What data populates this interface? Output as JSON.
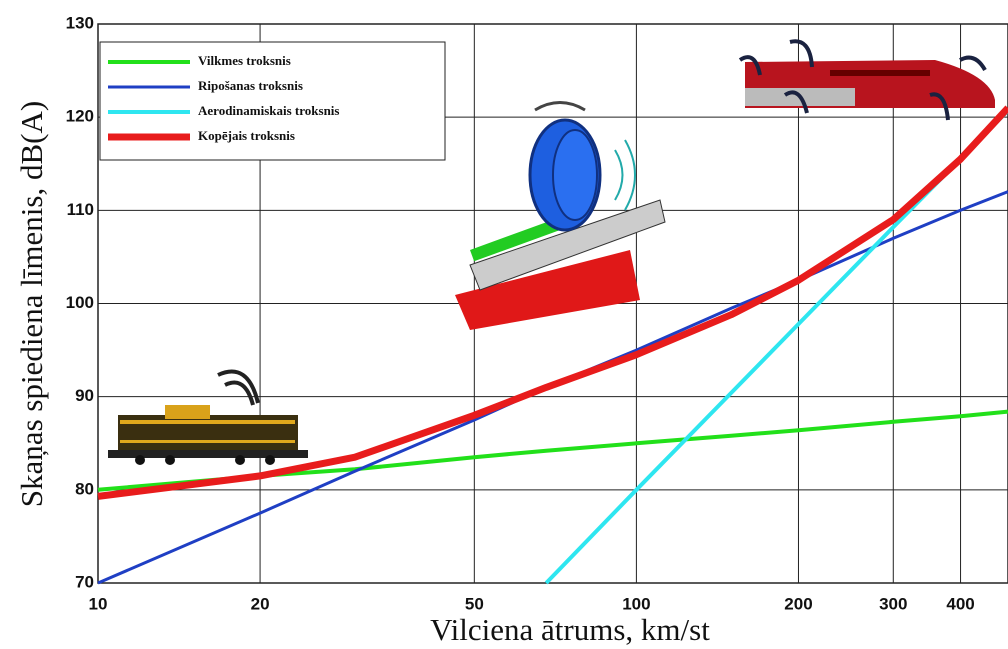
{
  "chart_data": {
    "type": "line",
    "x_label": "Vilciena ātrums, km/st",
    "y_label": "Skaņas spiediena līmenis, dB(A)",
    "x": [
      10,
      20,
      30,
      50,
      68,
      100,
      150,
      200,
      300,
      400,
      490
    ],
    "series": [
      {
        "name": "Vilkmes troksnis",
        "color": "#22e01a",
        "values": [
          80,
          81.5,
          82.2,
          83.5,
          84.2,
          85,
          85.8,
          86.4,
          87.3,
          87.9,
          88.4
        ]
      },
      {
        "name": "Ripošanas troksnis",
        "color": "#1f3fc4",
        "values": [
          70,
          77.5,
          82,
          87.5,
          91,
          95,
          99.5,
          102.5,
          107,
          110,
          112
        ]
      },
      {
        "name": "Aerodinamiskais troksnis",
        "color": "#2ee6f0",
        "values": [
          null,
          null,
          null,
          null,
          70,
          80,
          90.4,
          97.8,
          108.2,
          115.5,
          120.7
        ]
      },
      {
        "name": "Kopējais troksnis",
        "color": "#e81c1c",
        "values": [
          79.3,
          81.5,
          83.5,
          88,
          91,
          94.5,
          98.8,
          102.5,
          109,
          115.5,
          121
        ]
      }
    ],
    "xlim": [
      10,
      490
    ],
    "x_log": true,
    "xticks": [
      10,
      20,
      50,
      100,
      200,
      300,
      400
    ],
    "ylim": [
      70,
      130
    ],
    "yticks": [
      70,
      80,
      90,
      100,
      110,
      120,
      130
    ],
    "grid": true,
    "legend": "upper left"
  }
}
